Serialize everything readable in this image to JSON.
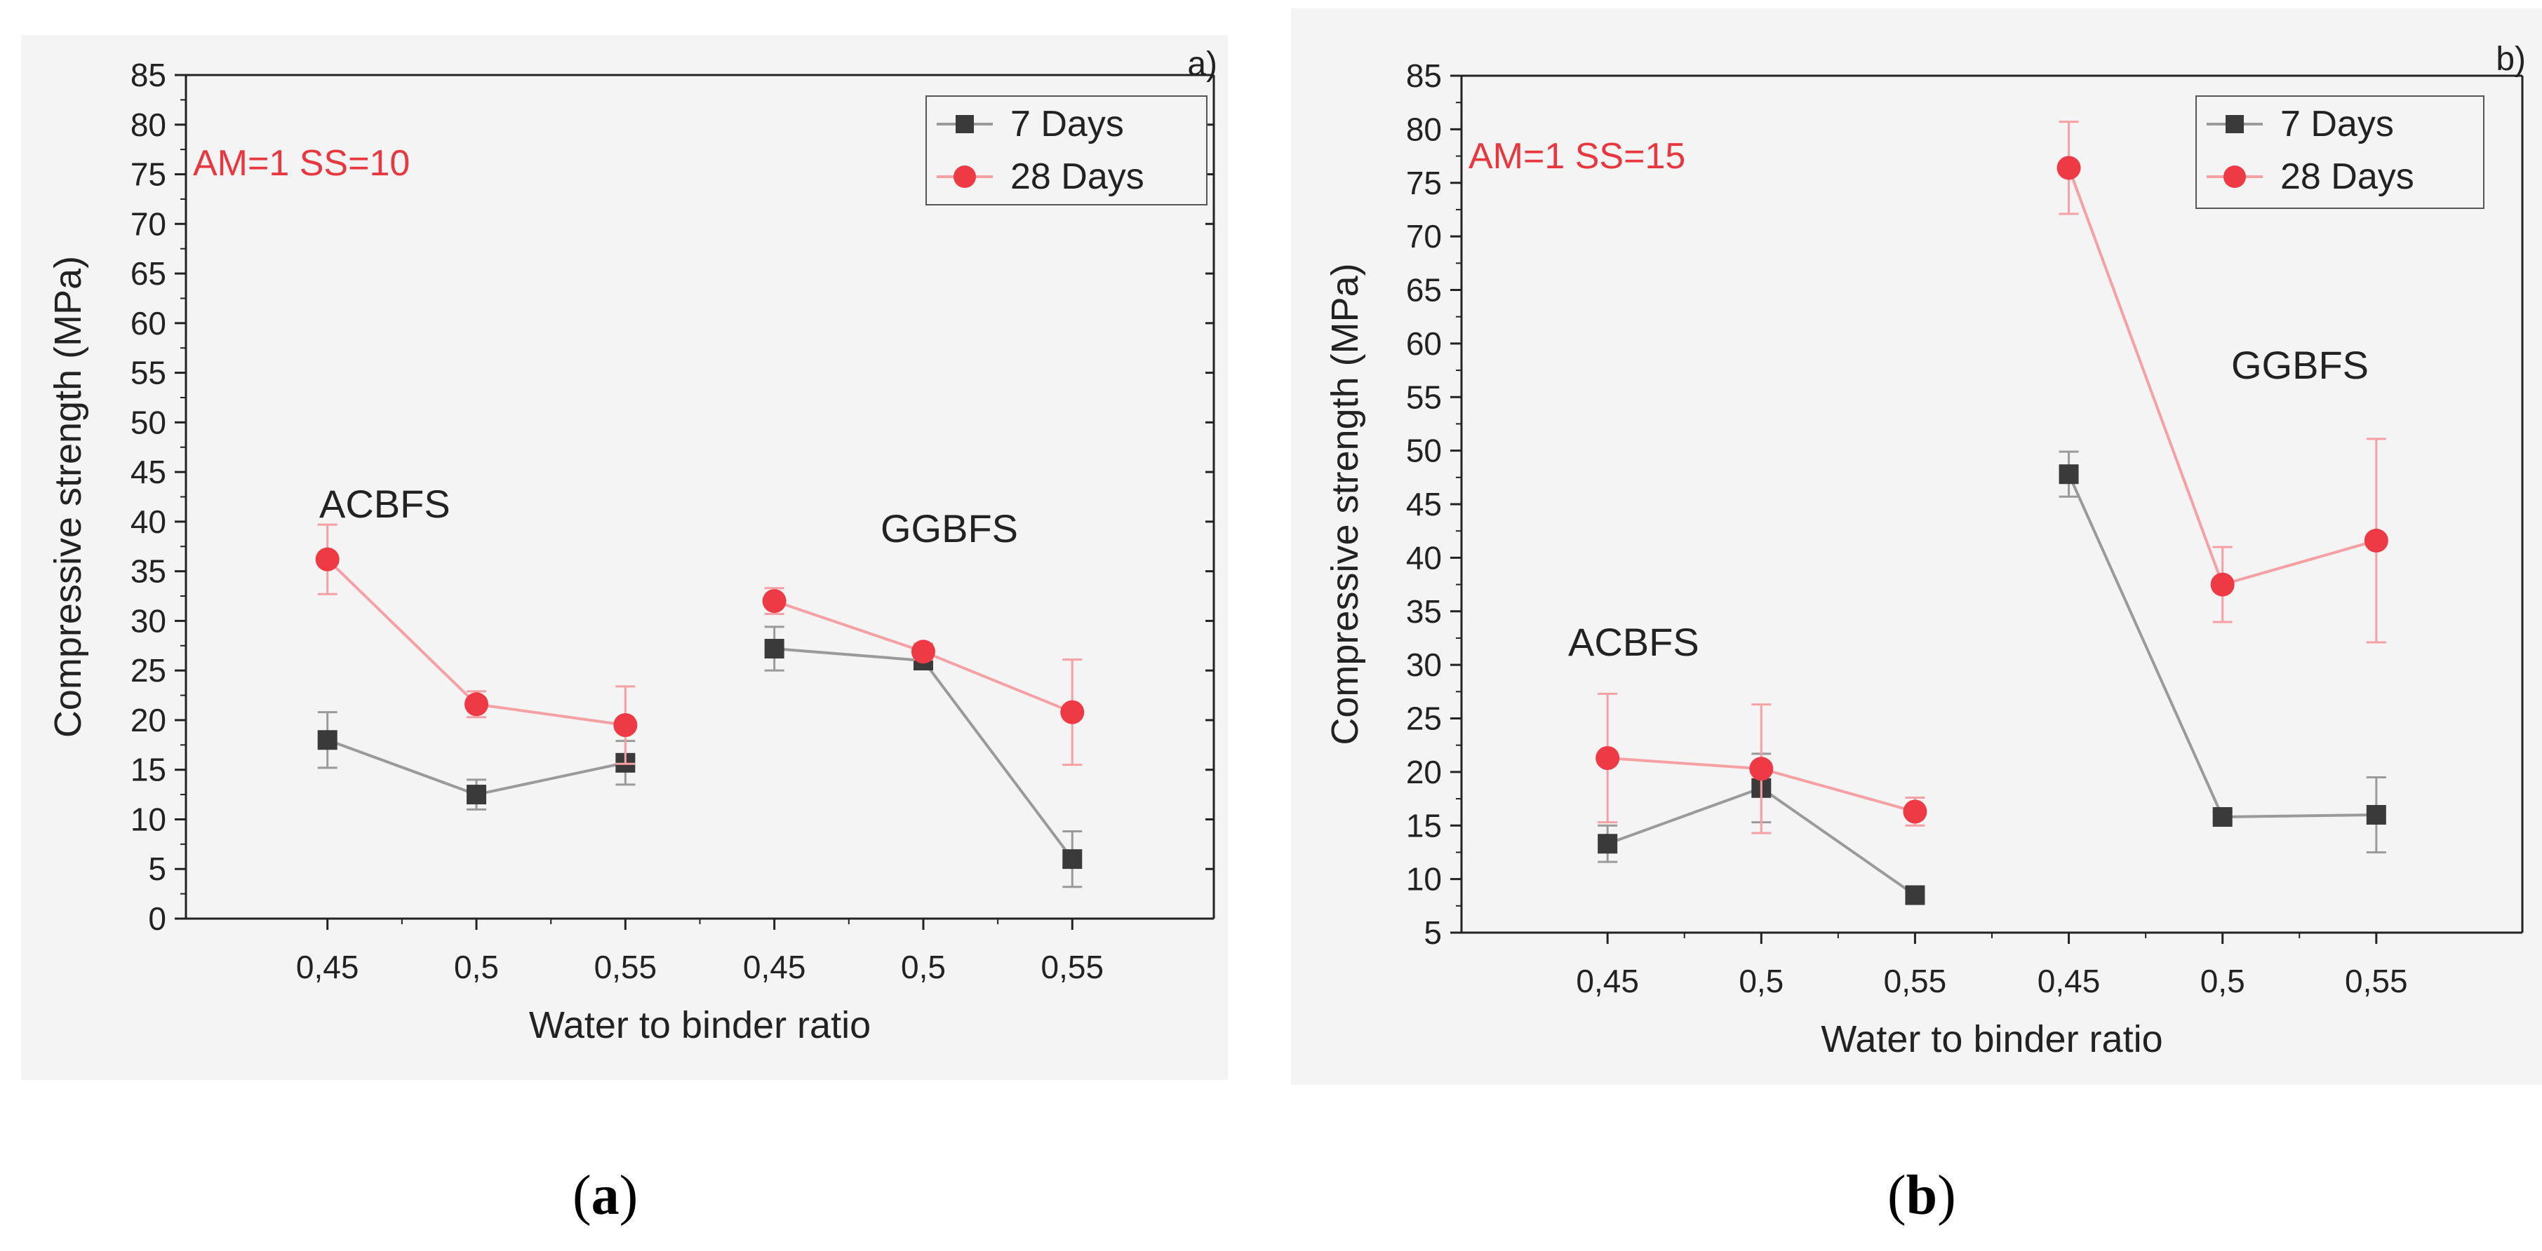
{
  "chart_data": [
    {
      "type": "line",
      "panel_label": "a)",
      "annotation": "AM=1 SS=10",
      "annotation_color": "#e8383f",
      "group_labels": [
        "ACBFS",
        "GGBFS"
      ],
      "categories": [
        "0,45",
        "0,5",
        "0,55",
        "0,45",
        "0,5",
        "0,55"
      ],
      "xlabel": "Water to binder ratio",
      "ylabel": "Compressive strength (MPa)",
      "ylim": [
        0,
        85
      ],
      "yticks": [
        0,
        5,
        10,
        15,
        20,
        25,
        30,
        35,
        40,
        45,
        50,
        55,
        60,
        65,
        70,
        75,
        80,
        85
      ],
      "legend": "top-right",
      "series": [
        {
          "name": "7 Days",
          "color": "#3a3a3a",
          "line_color": "#9a9a9a",
          "marker": "square",
          "segments": [
            [
              0,
              1,
              2
            ],
            [
              3,
              4,
              5
            ]
          ],
          "values": [
            18,
            12.5,
            15.7,
            27.2,
            26,
            6
          ],
          "errors": [
            2.8,
            1.5,
            2.2,
            2.2,
            0.8,
            2.8
          ]
        },
        {
          "name": "28 Days",
          "color": "#ee3a44",
          "line_color": "#f6a0a4",
          "marker": "circle",
          "segments": [
            [
              0,
              1,
              2
            ],
            [
              3,
              4,
              5
            ]
          ],
          "values": [
            36.2,
            21.6,
            19.5,
            32,
            26.9,
            20.8
          ],
          "errors": [
            3.5,
            1.3,
            3.9,
            1.3,
            0.8,
            5.3
          ]
        }
      ]
    },
    {
      "type": "line",
      "panel_label": "b)",
      "annotation": "AM=1 SS=15",
      "annotation_color": "#e8383f",
      "group_labels": [
        "ACBFS",
        "GGBFS"
      ],
      "categories": [
        "0,45",
        "0,5",
        "0,55",
        "0,45",
        "0,5",
        "0,55"
      ],
      "xlabel": "Water to binder ratio",
      "ylabel": "Compressive strength (MPa)",
      "ylim": [
        5,
        85
      ],
      "yticks": [
        5,
        10,
        15,
        20,
        25,
        30,
        35,
        40,
        45,
        50,
        55,
        60,
        65,
        70,
        75,
        80,
        85
      ],
      "legend": "top-right",
      "series": [
        {
          "name": "7 Days",
          "color": "#3a3a3a",
          "line_color": "#9a9a9a",
          "marker": "square",
          "segments": [
            [
              0,
              1,
              2
            ],
            [
              3,
              4,
              5
            ]
          ],
          "values": [
            13.3,
            18.5,
            8.5,
            47.8,
            15.8,
            16
          ],
          "errors": [
            1.7,
            3.2,
            0,
            2.1,
            0.5,
            3.5
          ]
        },
        {
          "name": "28 Days",
          "color": "#ee3a44",
          "line_color": "#f6a0a4",
          "marker": "circle",
          "segments": [
            [
              0,
              1,
              2
            ],
            [
              3,
              4,
              5
            ]
          ],
          "values": [
            21.3,
            20.3,
            16.3,
            76.4,
            37.5,
            41.6
          ],
          "errors": [
            6,
            6,
            1.3,
            4.3,
            3.5,
            9.5
          ]
        }
      ]
    }
  ],
  "captions": [
    "a",
    "b"
  ]
}
